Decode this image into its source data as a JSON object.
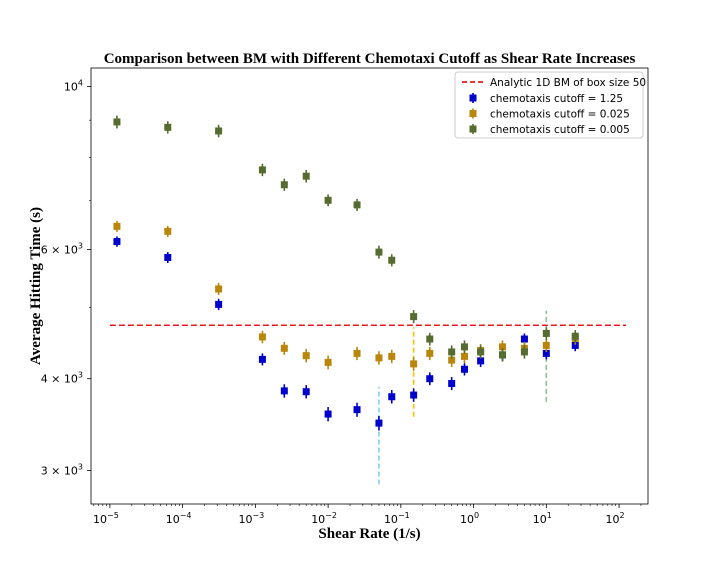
{
  "chart_data": {
    "type": "scatter",
    "title": "Comparison between BM with Different Chemotaxi Cutoff as Shear Rate Increases",
    "xlabel": "Shear Rate (1/s)",
    "ylabel": "Average Hitting Time (s)",
    "xscale": "log",
    "yscale": "log",
    "xlim": [
      5.5e-06,
      250
    ],
    "ylim": [
      2700,
      10600
    ],
    "x_ticks": [
      {
        "value": 1e-05,
        "base": "10",
        "exp": "−5"
      },
      {
        "value": 0.0001,
        "base": "10",
        "exp": "−4"
      },
      {
        "value": 0.001,
        "base": "10",
        "exp": "−3"
      },
      {
        "value": 0.01,
        "base": "10",
        "exp": "−2"
      },
      {
        "value": 0.1,
        "base": "10",
        "exp": "−1"
      },
      {
        "value": 1,
        "base": "10",
        "exp": "0"
      },
      {
        "value": 10,
        "base": "10",
        "exp": "1"
      },
      {
        "value": 100,
        "base": "10",
        "exp": "2"
      }
    ],
    "y_ticks": [
      {
        "value": 3000,
        "base": "3 × 10",
        "exp": "3"
      },
      {
        "value": 4000,
        "base": "4 × 10",
        "exp": "3"
      },
      {
        "value": 6000,
        "base": "6 × 10",
        "exp": "3"
      },
      {
        "value": 10000,
        "base": "10",
        "exp": "4"
      }
    ],
    "y_minor_ticks": [
      5000,
      7000,
      8000,
      9000
    ],
    "legend_position": "top-right",
    "reference_line": {
      "name": "Analytic 1D BM of box size 50",
      "y": 4730,
      "color": "#e41a1c",
      "style": "dashed"
    },
    "vertical_markers": [
      {
        "x": 0.05,
        "y_range": [
          2870,
          3900
        ],
        "color": "#87cefa"
      },
      {
        "x": 0.15,
        "y_range": [
          3550,
          4700
        ],
        "color": "#ffc000"
      },
      {
        "x": 10,
        "y_range": [
          3720,
          4950
        ],
        "color": "#8fbc8f"
      }
    ],
    "series": [
      {
        "name": "chemotaxis cutoff = 1.25",
        "color": "#0000cd",
        "x": [
          1.25e-05,
          6.25e-05,
          0.0003125,
          0.00125,
          0.0025,
          0.005,
          0.01,
          0.025,
          0.05,
          0.075,
          0.15,
          0.25,
          0.5,
          0.75,
          1.25,
          2.5,
          5,
          10,
          25
        ],
        "y": [
          6150,
          5850,
          5050,
          4250,
          3850,
          3840,
          3580,
          3630,
          3480,
          3780,
          3800,
          4000,
          3940,
          4120,
          4230,
          4310,
          4530,
          4330,
          4440
        ],
        "err": [
          100,
          100,
          90,
          80,
          80,
          80,
          80,
          80,
          80,
          80,
          80,
          80,
          80,
          80,
          80,
          80,
          80,
          80,
          80
        ]
      },
      {
        "name": "chemotaxis cutoff = 0.025",
        "color": "#b8860b",
        "x": [
          1.25e-05,
          6.25e-05,
          0.0003125,
          0.00125,
          0.0025,
          0.005,
          0.01,
          0.025,
          0.05,
          0.075,
          0.15,
          0.25,
          0.5,
          0.75,
          1.25,
          2.5,
          5,
          10,
          25
        ],
        "y": [
          6450,
          6350,
          5300,
          4560,
          4400,
          4300,
          4210,
          4330,
          4270,
          4290,
          4190,
          4330,
          4240,
          4290,
          4370,
          4420,
          4400,
          4440,
          4540
        ],
        "err": [
          110,
          110,
          100,
          90,
          90,
          90,
          90,
          90,
          90,
          90,
          90,
          90,
          90,
          90,
          90,
          90,
          90,
          90,
          90
        ]
      },
      {
        "name": "chemotaxis cutoff = 0.005",
        "color": "#556b2f",
        "x": [
          1.25e-05,
          6.25e-05,
          0.0003125,
          0.00125,
          0.0025,
          0.005,
          0.01,
          0.025,
          0.05,
          0.075,
          0.15,
          0.25,
          0.5,
          0.75,
          1.25,
          2.5,
          5,
          10,
          25
        ],
        "y": [
          8950,
          8800,
          8700,
          7700,
          7350,
          7550,
          7000,
          6900,
          5950,
          5800,
          4860,
          4530,
          4350,
          4420,
          4350,
          4310,
          4350,
          4610,
          4570
        ],
        "err": [
          180,
          170,
          170,
          150,
          140,
          150,
          130,
          130,
          120,
          110,
          100,
          90,
          90,
          90,
          90,
          90,
          90,
          90,
          90
        ]
      }
    ]
  }
}
